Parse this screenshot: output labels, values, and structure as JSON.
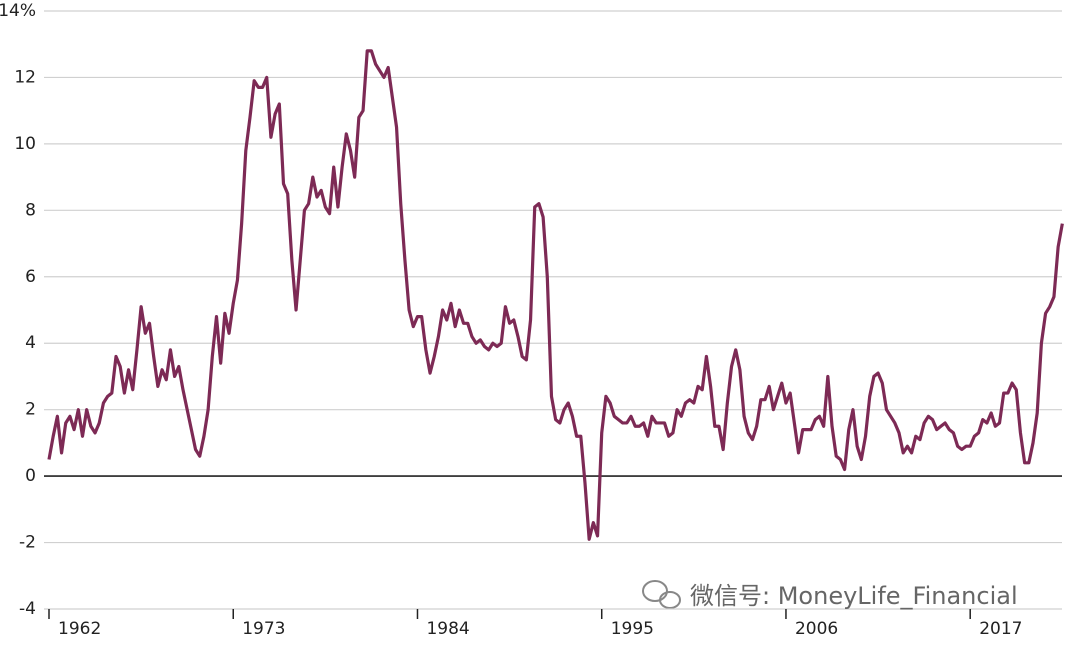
{
  "chart_data": {
    "type": "line",
    "watermark": "微信号: MoneyLife_Financial",
    "xlim": [
      1962,
      2022.6
    ],
    "xticks": [
      1962,
      1973,
      1984,
      1995,
      2006,
      2017
    ],
    "ylim": [
      -4,
      14
    ],
    "yticks": [
      {
        "value": 14,
        "label": "14%"
      },
      12,
      10,
      8,
      6,
      4,
      2,
      0,
      -2,
      -4
    ],
    "grid": true,
    "x": [
      1962,
      1962.25,
      1962.5,
      1962.75,
      1963,
      1963.25,
      1963.5,
      1963.75,
      1964,
      1964.25,
      1964.5,
      1964.75,
      1965,
      1965.25,
      1965.5,
      1965.75,
      1966,
      1966.25,
      1966.5,
      1966.75,
      1967,
      1967.25,
      1967.5,
      1967.75,
      1968,
      1968.25,
      1968.5,
      1968.75,
      1969,
      1969.25,
      1969.5,
      1969.75,
      1970,
      1970.25,
      1970.5,
      1970.75,
      1971,
      1971.25,
      1971.5,
      1971.75,
      1972,
      1972.25,
      1972.5,
      1972.75,
      1973,
      1973.25,
      1973.5,
      1973.75,
      1974,
      1974.25,
      1974.5,
      1974.75,
      1975,
      1975.25,
      1975.5,
      1975.75,
      1976,
      1976.25,
      1976.5,
      1976.75,
      1977,
      1977.25,
      1977.5,
      1977.75,
      1978,
      1978.25,
      1978.5,
      1978.75,
      1979,
      1979.25,
      1979.5,
      1979.75,
      1980,
      1980.25,
      1980.5,
      1980.75,
      1981,
      1981.25,
      1981.5,
      1981.75,
      1982,
      1982.25,
      1982.5,
      1982.75,
      1983,
      1983.25,
      1983.5,
      1983.75,
      1984,
      1984.25,
      1984.5,
      1984.75,
      1985,
      1985.25,
      1985.5,
      1985.75,
      1986,
      1986.25,
      1986.5,
      1986.75,
      1987,
      1987.25,
      1987.5,
      1987.75,
      1988,
      1988.25,
      1988.5,
      1988.75,
      1989,
      1989.25,
      1989.5,
      1989.75,
      1990,
      1990.25,
      1990.5,
      1990.75,
      1991,
      1991.25,
      1991.5,
      1991.75,
      1992,
      1992.25,
      1992.5,
      1992.75,
      1993,
      1993.25,
      1993.5,
      1993.75,
      1994,
      1994.25,
      1994.5,
      1994.75,
      1995,
      1995.25,
      1995.5,
      1995.75,
      1996,
      1996.25,
      1996.5,
      1996.75,
      1997,
      1997.25,
      1997.5,
      1997.75,
      1998,
      1998.25,
      1998.5,
      1998.75,
      1999,
      1999.25,
      1999.5,
      1999.75,
      2000,
      2000.25,
      2000.5,
      2000.75,
      2001,
      2001.25,
      2001.5,
      2001.75,
      2002,
      2002.25,
      2002.5,
      2002.75,
      2003,
      2003.25,
      2003.5,
      2003.75,
      2004,
      2004.25,
      2004.5,
      2004.75,
      2005,
      2005.25,
      2005.5,
      2005.75,
      2006,
      2006.25,
      2006.5,
      2006.75,
      2007,
      2007.25,
      2007.5,
      2007.75,
      2008,
      2008.25,
      2008.5,
      2008.75,
      2009,
      2009.25,
      2009.5,
      2009.75,
      2010,
      2010.25,
      2010.5,
      2010.75,
      2011,
      2011.25,
      2011.5,
      2011.75,
      2012,
      2012.25,
      2012.5,
      2012.75,
      2013,
      2013.25,
      2013.5,
      2013.75,
      2014,
      2014.25,
      2014.5,
      2014.75,
      2015,
      2015.25,
      2015.5,
      2015.75,
      2016,
      2016.25,
      2016.5,
      2016.75,
      2017,
      2017.25,
      2017.5,
      2017.75,
      2018,
      2018.25,
      2018.5,
      2018.75,
      2019,
      2019.25,
      2019.5,
      2019.75,
      2020,
      2020.25,
      2020.5,
      2020.75,
      2021,
      2021.25,
      2021.5,
      2021.75,
      2022,
      2022.25,
      2022.5
    ],
    "series": [
      {
        "color": "#7d2a55",
        "values": [
          0.5,
          1.2,
          1.8,
          0.7,
          1.6,
          1.8,
          1.4,
          2.0,
          1.2,
          2.0,
          1.5,
          1.3,
          1.6,
          2.2,
          2.4,
          2.5,
          3.6,
          3.3,
          2.5,
          3.2,
          2.6,
          3.8,
          5.1,
          4.3,
          4.6,
          3.6,
          2.7,
          3.2,
          2.9,
          3.8,
          3.0,
          3.3,
          2.6,
          2.0,
          1.4,
          0.8,
          0.6,
          1.2,
          2.0,
          3.6,
          4.8,
          3.4,
          4.9,
          4.3,
          5.2,
          5.9,
          7.6,
          9.8,
          10.8,
          11.9,
          11.7,
          11.7,
          12.0,
          10.2,
          10.9,
          11.2,
          8.8,
          8.5,
          6.5,
          5.0,
          6.5,
          8.0,
          8.2,
          9.0,
          8.4,
          8.6,
          8.1,
          7.9,
          9.3,
          8.1,
          9.3,
          10.3,
          9.8,
          9.0,
          10.8,
          11.0,
          12.8,
          12.8,
          12.4,
          12.2,
          12.0,
          12.3,
          11.4,
          10.5,
          8.2,
          6.5,
          5.0,
          4.5,
          4.8,
          4.8,
          3.8,
          3.1,
          3.6,
          4.2,
          5.0,
          4.7,
          5.2,
          4.5,
          5.0,
          4.6,
          4.6,
          4.2,
          4.0,
          4.1,
          3.9,
          3.8,
          4.0,
          3.9,
          4.0,
          5.1,
          4.6,
          4.7,
          4.2,
          3.6,
          3.5,
          4.7,
          8.1,
          8.2,
          7.8,
          6.0,
          2.4,
          1.7,
          1.6,
          2.0,
          2.2,
          1.8,
          1.2,
          1.2,
          -0.2,
          -1.9,
          -1.4,
          -1.8,
          1.3,
          2.4,
          2.2,
          1.8,
          1.7,
          1.6,
          1.6,
          1.8,
          1.5,
          1.5,
          1.6,
          1.2,
          1.8,
          1.6,
          1.6,
          1.6,
          1.2,
          1.3,
          2.0,
          1.8,
          2.2,
          2.3,
          2.2,
          2.7,
          2.6,
          3.6,
          2.7,
          1.5,
          1.5,
          0.8,
          2.2,
          3.3,
          3.8,
          3.2,
          1.8,
          1.3,
          1.1,
          1.5,
          2.3,
          2.3,
          2.7,
          2.0,
          2.4,
          2.8,
          2.2,
          2.5,
          1.6,
          0.7,
          1.4,
          1.4,
          1.4,
          1.7,
          1.8,
          1.5,
          3.0,
          1.5,
          0.6,
          0.5,
          0.2,
          1.4,
          2.0,
          0.9,
          0.5,
          1.2,
          2.4,
          3.0,
          3.1,
          2.8,
          2.0,
          1.8,
          1.6,
          1.3,
          0.7,
          0.9,
          0.7,
          1.2,
          1.1,
          1.6,
          1.8,
          1.7,
          1.4,
          1.5,
          1.6,
          1.4,
          1.3,
          0.9,
          0.8,
          0.9,
          0.9,
          1.2,
          1.3,
          1.7,
          1.6,
          1.9,
          1.5,
          1.6,
          2.5,
          2.5,
          2.8,
          2.6,
          1.3,
          0.4,
          0.4,
          1.0,
          1.9,
          4.0,
          4.9,
          5.1,
          5.4,
          6.9,
          7.6
        ]
      }
    ]
  }
}
